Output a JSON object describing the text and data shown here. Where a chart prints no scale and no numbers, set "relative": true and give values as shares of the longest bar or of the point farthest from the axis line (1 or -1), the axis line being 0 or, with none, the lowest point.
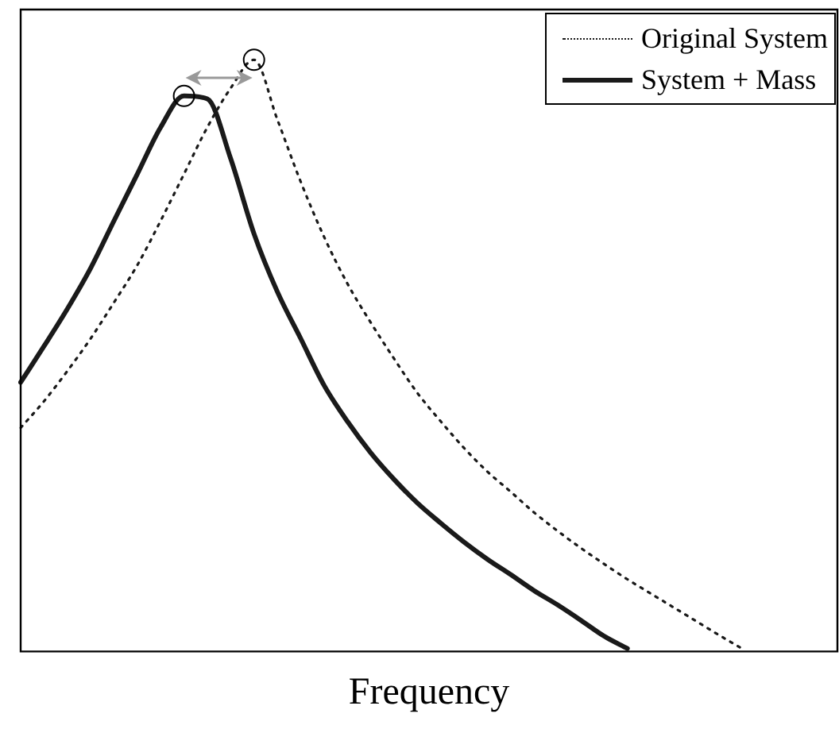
{
  "chart_data": {
    "type": "line",
    "relative": true,
    "xlabel": "Frequency",
    "legend": "top right",
    "categories": [
      null,
      null,
      null,
      null,
      null,
      null,
      null,
      null,
      null,
      null,
      null,
      null,
      null,
      null,
      null,
      null,
      null,
      null,
      null,
      null,
      null,
      null,
      null,
      null,
      null,
      null,
      null,
      null,
      null,
      null,
      null,
      null,
      null,
      null,
      null,
      null
    ],
    "series": [
      {
        "name": "Original System",
        "color": "#1a1a1a",
        "line_style": "dotted",
        "values": [
          0.378,
          0.423,
          0.474,
          0.529,
          0.59,
          0.653,
          0.728,
          0.807,
          0.886,
          0.952,
          1,
          0.899,
          0.794,
          0.701,
          0.622,
          0.556,
          0.495,
          0.437,
          0.389,
          0.344,
          0.304,
          0.27,
          0.235,
          0.204,
          0.175,
          0.148,
          0.122,
          0.098,
          0.074,
          0.05,
          0.026,
          0.003,
          null,
          null,
          null,
          null
        ]
      },
      {
        "name": "System + Mass",
        "color": "#1a1a1a",
        "line_style": "solid",
        "values": [
          0.455,
          0.516,
          0.579,
          0.648,
          0.728,
          0.807,
          0.886,
          0.939,
          0.934,
          0.833,
          0.706,
          0.608,
          0.529,
          0.45,
          0.389,
          0.336,
          0.291,
          0.251,
          0.217,
          0.185,
          0.156,
          0.13,
          0.103,
          0.079,
          0.053,
          0.026,
          0.005,
          null,
          null,
          null,
          null,
          null,
          null,
          null,
          null,
          null
        ]
      }
    ]
  }
}
